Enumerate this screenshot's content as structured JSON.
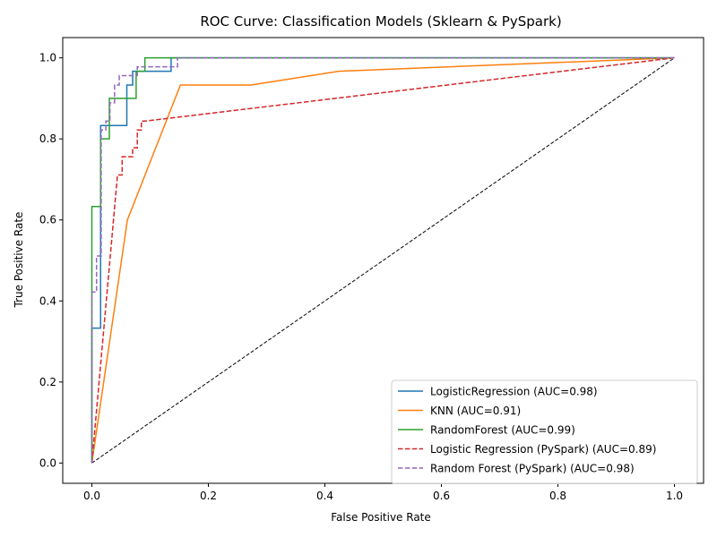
{
  "chart_data": {
    "type": "line",
    "title": "ROC Curve: Classification Models (Sklearn & PySpark)",
    "xlabel": "False Positive Rate",
    "ylabel": "True Positive Rate",
    "xlim": [
      -0.05,
      1.05
    ],
    "ylim": [
      -0.05,
      1.05
    ],
    "xticks": [
      "0.0",
      "0.2",
      "0.4",
      "0.6",
      "0.8",
      "1.0"
    ],
    "yticks": [
      "0.0",
      "0.2",
      "0.4",
      "0.6",
      "0.8",
      "1.0"
    ],
    "xtick_values": [
      0,
      0.2,
      0.4,
      0.6,
      0.8,
      1.0
    ],
    "ytick_values": [
      0,
      0.2,
      0.4,
      0.6,
      0.8,
      1.0
    ],
    "grid": false,
    "legend_position": "bottom-right",
    "diagonal": {
      "x": [
        0,
        1
      ],
      "y": [
        0,
        1
      ],
      "color": "#000000",
      "style": "dashed"
    },
    "series": [
      {
        "name": "LogisticRegression (AUC=0.98)",
        "color": "#1f77b4",
        "style": "solid",
        "x": [
          0,
          0,
          0.015,
          0.015,
          0.06,
          0.06,
          0.07,
          0.07,
          0.09,
          0.09,
          0.136,
          0.136,
          1.0
        ],
        "y": [
          0,
          0.333,
          0.333,
          0.833,
          0.833,
          0.933,
          0.933,
          0.967,
          0.967,
          0.967,
          0.967,
          1.0,
          1.0
        ]
      },
      {
        "name": "KNN (AUC=0.91)",
        "color": "#ff7f0e",
        "style": "solid",
        "x": [
          0,
          0.061,
          0.152,
          0.273,
          0.424,
          1.0
        ],
        "y": [
          0,
          0.6,
          0.933,
          0.933,
          0.967,
          1.0
        ]
      },
      {
        "name": "RandomForest (AUC=0.99)",
        "color": "#2ca02c",
        "style": "solid",
        "x": [
          0,
          0,
          0.015,
          0.015,
          0.03,
          0.03,
          0.076,
          0.076,
          0.091,
          0.091,
          1.0
        ],
        "y": [
          0,
          0.633,
          0.633,
          0.8,
          0.8,
          0.9,
          0.9,
          0.967,
          0.967,
          1.0,
          1.0
        ]
      },
      {
        "name": "Logistic Regression (PySpark) (AUC=0.89)",
        "color": "#d62728",
        "style": "dashed",
        "x": [
          0,
          0.044,
          0.044,
          0.052,
          0.052,
          0.07,
          0.07,
          0.078,
          0.078,
          0.085,
          0.085,
          0.092,
          1.0
        ],
        "y": [
          0,
          0.711,
          0.711,
          0.711,
          0.756,
          0.756,
          0.778,
          0.778,
          0.822,
          0.822,
          0.844,
          0.844,
          1.0
        ]
      },
      {
        "name": "Random Forest (PySpark) (AUC=0.98)",
        "color": "#9467bd",
        "style": "dashed",
        "x": [
          0,
          0,
          0.008,
          0.008,
          0.016,
          0.016,
          0.024,
          0.024,
          0.031,
          0.031,
          0.039,
          0.039,
          0.047,
          0.047,
          0.078,
          0.078,
          0.093,
          0.093,
          0.147,
          0.147,
          1.0
        ],
        "y": [
          0,
          0.422,
          0.422,
          0.511,
          0.511,
          0.822,
          0.822,
          0.844,
          0.844,
          0.889,
          0.889,
          0.933,
          0.933,
          0.956,
          0.956,
          0.978,
          0.978,
          0.978,
          0.978,
          1.0,
          1.0
        ]
      }
    ]
  }
}
